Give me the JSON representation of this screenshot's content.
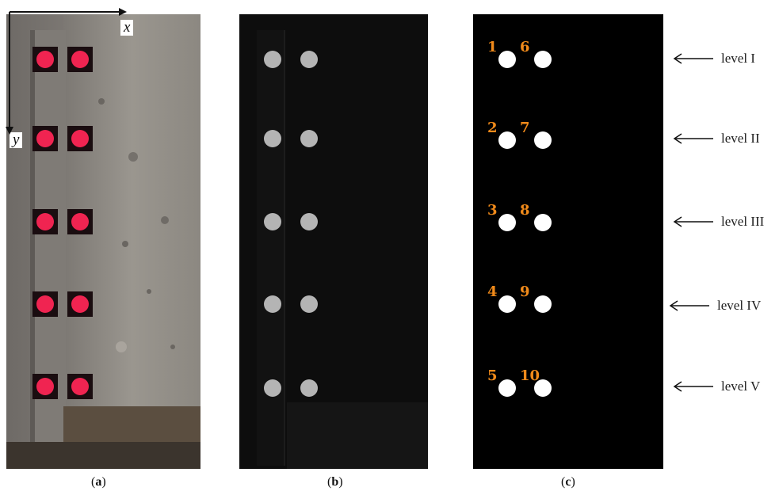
{
  "panels": {
    "a": {
      "caption_open": "(",
      "caption_letter": "a",
      "caption_close": ")"
    },
    "b": {
      "caption_open": "(",
      "caption_letter": "b",
      "caption_close": ")"
    },
    "c": {
      "caption_open": "(",
      "caption_letter": "c",
      "caption_close": ")"
    }
  },
  "axes": {
    "x": "x",
    "y": "y"
  },
  "colors": {
    "target_red": "#f02451",
    "target_gray": "#b4b4b4",
    "number_orange": "#f08a1a",
    "concrete": "#8a8680",
    "black": "#000000"
  },
  "markers": [
    {
      "number": "1"
    },
    {
      "number": "2"
    },
    {
      "number": "3"
    },
    {
      "number": "4"
    },
    {
      "number": "5"
    },
    {
      "number": "6"
    },
    {
      "number": "7"
    },
    {
      "number": "8"
    },
    {
      "number": "9"
    },
    {
      "number": "10"
    }
  ],
  "levels": [
    {
      "label": "level I"
    },
    {
      "label": "level II"
    },
    {
      "label": "level III"
    },
    {
      "label": "level IV"
    },
    {
      "label": "level V"
    }
  ]
}
